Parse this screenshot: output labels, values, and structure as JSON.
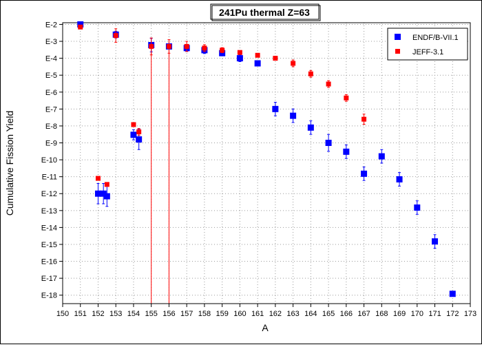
{
  "chart_data": {
    "type": "scatter",
    "title": "241Pu thermal Z=63",
    "xlabel": "A",
    "ylabel": "Cumulative Fission Yield",
    "x_ticks": [
      "150",
      "151",
      "152",
      "153",
      "154",
      "155",
      "156",
      "157",
      "158",
      "159",
      "160",
      "161",
      "162",
      "163",
      "164",
      "165",
      "166",
      "167",
      "168",
      "169",
      "170",
      "171",
      "172",
      "173"
    ],
    "y_ticks": [
      "E-2",
      "E-3",
      "E-4",
      "E-5",
      "E-6",
      "E-7",
      "E-8",
      "E-9",
      "E-10",
      "E-11",
      "E-12",
      "E-13",
      "E-14",
      "E-15",
      "E-16",
      "E-17",
      "E-18"
    ],
    "xlim": [
      150,
      173
    ],
    "ylim_exponent": [
      -18.5,
      -1.9
    ],
    "y_scale": "log",
    "grid": true,
    "legend_position": "top-right",
    "series": [
      {
        "name": "ENDF/B-VII.1",
        "color": "#0000ff",
        "marker": "square",
        "points": [
          {
            "x": 151,
            "y": 0.01,
            "err": 0
          },
          {
            "x": 152,
            "y": 1e-12,
            "err": 0.6
          },
          {
            "x": 152.3,
            "y": 1e-12,
            "err": 0.6
          },
          {
            "x": 152.5,
            "y": 7e-13,
            "err": 0.6
          },
          {
            "x": 153,
            "y": 0.0025,
            "err": 0.2
          },
          {
            "x": 154,
            "y": 3e-09,
            "err": 0.3
          },
          {
            "x": 154.3,
            "y": 1.6e-09,
            "err": 0.6
          },
          {
            "x": 155,
            "y": 0.0006,
            "err": 0.4
          },
          {
            "x": 156,
            "y": 0.0005,
            "err": 0.1
          },
          {
            "x": 157,
            "y": 0.0004,
            "err": 0.2
          },
          {
            "x": 158,
            "y": 0.0003,
            "err": 0.2
          },
          {
            "x": 159,
            "y": 0.0002,
            "err": 0.1
          },
          {
            "x": 160,
            "y": 0.0001,
            "err": 0.2
          },
          {
            "x": 161,
            "y": 5e-05,
            "err": 0
          },
          {
            "x": 162,
            "y": 1e-07,
            "err": 0.4
          },
          {
            "x": 163,
            "y": 4e-08,
            "err": 0.4
          },
          {
            "x": 164,
            "y": 8e-09,
            "err": 0.4
          },
          {
            "x": 165,
            "y": 1e-09,
            "err": 0.5
          },
          {
            "x": 166,
            "y": 3e-10,
            "err": 0.4
          },
          {
            "x": 167,
            "y": 1.5e-11,
            "err": 0.4
          },
          {
            "x": 168,
            "y": 1.6e-10,
            "err": 0.4
          },
          {
            "x": 169,
            "y": 7e-12,
            "err": 0.4
          },
          {
            "x": 170,
            "y": 1.5e-13,
            "err": 0.4
          },
          {
            "x": 171,
            "y": 1.5e-15,
            "err": 0.4
          },
          {
            "x": 172,
            "y": 1.2e-18,
            "err": 0
          }
        ]
      },
      {
        "name": "JEFF-3.1",
        "color": "#ff0000",
        "marker": "square",
        "points": [
          {
            "x": 151,
            "y": 0.007,
            "err": 0.1
          },
          {
            "x": 152,
            "y": 8e-12,
            "err": 0
          },
          {
            "x": 152.5,
            "y": 3.5e-12,
            "err": 0.1
          },
          {
            "x": 153,
            "y": 0.0022,
            "err": 0.4
          },
          {
            "x": 154,
            "y": 1.2e-08,
            "err": 0.1
          },
          {
            "x": 154.3,
            "y": 4.5e-09,
            "err": 0.2
          },
          {
            "x": 155,
            "y": 0.0005,
            "err": 0.5
          },
          {
            "x": 156,
            "y": 0.0005,
            "err": 0.4
          },
          {
            "x": 157,
            "y": 0.0005,
            "err": 0.3
          },
          {
            "x": 158,
            "y": 0.0004,
            "err": 0.2
          },
          {
            "x": 159,
            "y": 0.0003,
            "err": 0.15
          },
          {
            "x": 160,
            "y": 0.00022,
            "err": 0.1
          },
          {
            "x": 161,
            "y": 0.00015,
            "err": 0.1
          },
          {
            "x": 162,
            "y": 0.0001,
            "err": 0
          },
          {
            "x": 163,
            "y": 5e-05,
            "err": 0.2
          },
          {
            "x": 164,
            "y": 1.2e-05,
            "err": 0.2
          },
          {
            "x": 165,
            "y": 3e-06,
            "err": 0.2
          },
          {
            "x": 166,
            "y": 4.5e-07,
            "err": 0.2
          },
          {
            "x": 167,
            "y": 2.5e-08,
            "err": 0.3
          }
        ]
      }
    ],
    "vertical_lines": [
      {
        "x": 155,
        "y_top": 0.001,
        "color": "#ff0000"
      },
      {
        "x": 156,
        "y_top": 0.001,
        "color": "#ff0000"
      }
    ]
  }
}
